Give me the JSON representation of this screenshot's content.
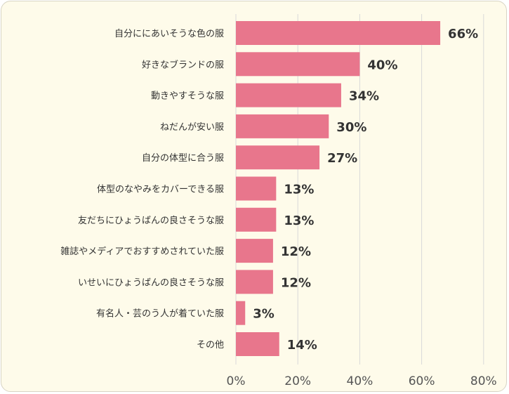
{
  "chart_data": {
    "type": "bar",
    "orientation": "horizontal",
    "categories": [
      "自分ににあいそうな色の服",
      "好きなブランドの服",
      "動きやすそうな服",
      "ねだんが安い服",
      "自分の体型に合う服",
      "体型のなやみをカバーできる服",
      "友だちにひょうばんの良さそうな服",
      "雑誌やメディアでおすすめされていた服",
      "いせいにひょうばんの良さそうな服",
      "有名人・芸のう人が着ていた服",
      "その他"
    ],
    "values": [
      66,
      40,
      34,
      30,
      27,
      13,
      13,
      12,
      12,
      3,
      14
    ],
    "value_labels": [
      "66%",
      "40%",
      "34%",
      "30%",
      "27%",
      "13%",
      "13%",
      "12%",
      "12%",
      "3%",
      "14%"
    ],
    "xlim": [
      0,
      80
    ],
    "x_ticks": [
      0,
      20,
      40,
      60,
      80
    ],
    "x_tick_labels": [
      "0%",
      "20%",
      "40%",
      "60%",
      "80%"
    ],
    "grid": "vertical",
    "bar_color": "#e8768c",
    "title": "",
    "xlabel": "",
    "ylabel": ""
  }
}
